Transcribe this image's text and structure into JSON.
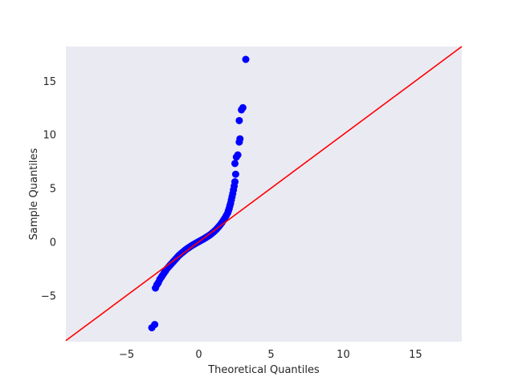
{
  "chart_data": {
    "type": "scatter",
    "title": "",
    "xlabel": "Theoretical Quantiles",
    "ylabel": "Sample Quantiles",
    "xlim": [
      -9.2,
      18.2
    ],
    "ylim": [
      -9.3,
      18.2
    ],
    "xticks": [
      -5,
      0,
      5,
      10,
      15
    ],
    "yticks": [
      -5,
      0,
      5,
      10,
      15
    ],
    "xtick_labels": [
      "−5",
      "0",
      "5",
      "10",
      "15"
    ],
    "ytick_labels": [
      "−5",
      "0",
      "5",
      "10",
      "15"
    ],
    "grid": false,
    "colors": {
      "background": "#eaeaf2",
      "points": "#0000ff",
      "line": "#ff0000"
    },
    "reference_line": {
      "type": "45-degree",
      "slope": 1,
      "intercept": 0
    },
    "series": [
      {
        "points": [
          [
            -3.25,
            -8.0
          ],
          [
            -3.05,
            -7.7
          ],
          [
            -3.0,
            -4.3
          ],
          [
            -2.9,
            -4.0
          ],
          [
            -2.8,
            -3.8
          ],
          [
            -2.7,
            -3.5
          ],
          [
            -2.6,
            -3.3
          ],
          [
            -2.5,
            -3.1
          ],
          [
            -2.4,
            -2.9
          ],
          [
            -2.3,
            -2.7
          ],
          [
            -2.2,
            -2.5
          ],
          [
            -2.1,
            -2.35
          ],
          [
            -2.0,
            -2.2
          ],
          [
            -1.9,
            -2.05
          ],
          [
            -1.8,
            -1.9
          ],
          [
            -1.7,
            -1.75
          ],
          [
            -1.6,
            -1.6
          ],
          [
            -1.5,
            -1.45
          ],
          [
            -1.4,
            -1.3
          ],
          [
            -1.3,
            -1.18
          ],
          [
            -1.2,
            -1.06
          ],
          [
            -1.1,
            -0.95
          ],
          [
            -1.0,
            -0.84
          ],
          [
            -0.9,
            -0.73
          ],
          [
            -0.8,
            -0.63
          ],
          [
            -0.7,
            -0.54
          ],
          [
            -0.6,
            -0.45
          ],
          [
            -0.5,
            -0.36
          ],
          [
            -0.4,
            -0.28
          ],
          [
            -0.3,
            -0.2
          ],
          [
            -0.2,
            -0.12
          ],
          [
            -0.1,
            -0.05
          ],
          [
            0.0,
            0.03
          ],
          [
            0.1,
            0.1
          ],
          [
            0.2,
            0.18
          ],
          [
            0.3,
            0.25
          ],
          [
            0.4,
            0.33
          ],
          [
            0.5,
            0.41
          ],
          [
            0.6,
            0.5
          ],
          [
            0.7,
            0.58
          ],
          [
            0.8,
            0.68
          ],
          [
            0.9,
            0.78
          ],
          [
            1.0,
            0.9
          ],
          [
            1.1,
            1.02
          ],
          [
            1.2,
            1.15
          ],
          [
            1.3,
            1.3
          ],
          [
            1.4,
            1.45
          ],
          [
            1.5,
            1.62
          ],
          [
            1.6,
            1.8
          ],
          [
            1.7,
            2.0
          ],
          [
            1.8,
            2.2
          ],
          [
            1.9,
            2.45
          ],
          [
            2.0,
            2.7
          ],
          [
            2.05,
            2.9
          ],
          [
            2.1,
            3.1
          ],
          [
            2.15,
            3.35
          ],
          [
            2.2,
            3.6
          ],
          [
            2.25,
            3.9
          ],
          [
            2.3,
            4.2
          ],
          [
            2.35,
            4.5
          ],
          [
            2.4,
            4.85
          ],
          [
            2.45,
            5.2
          ],
          [
            2.5,
            5.6
          ],
          [
            2.55,
            6.3
          ],
          [
            2.5,
            7.3
          ],
          [
            2.6,
            7.9
          ],
          [
            2.7,
            8.1
          ],
          [
            2.8,
            9.3
          ],
          [
            2.85,
            9.6
          ],
          [
            2.8,
            11.3
          ],
          [
            2.95,
            12.3
          ],
          [
            3.05,
            12.5
          ],
          [
            3.25,
            17.0
          ]
        ]
      }
    ]
  }
}
